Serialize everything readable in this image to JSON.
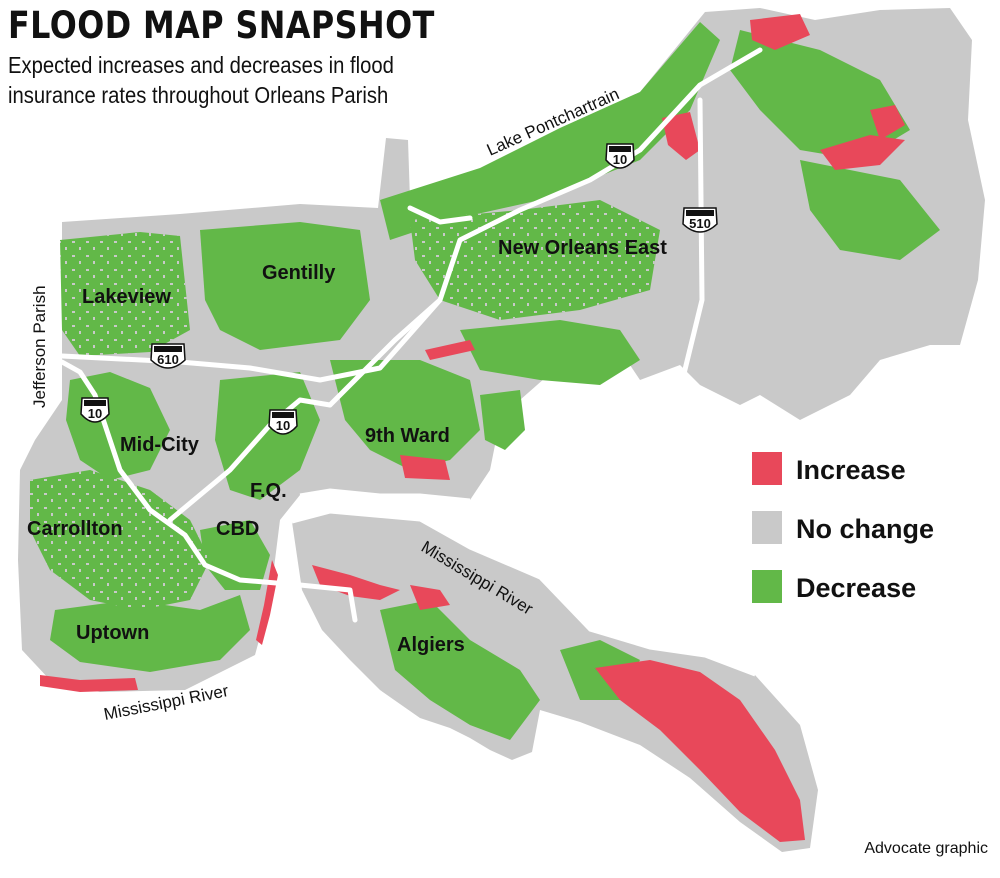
{
  "title": "FLOOD MAP SNAPSHOT",
  "subtitle": "Expected increases and decreases in flood insurance rates throughout Orleans Parish",
  "colors": {
    "increase": "#e8485a",
    "no_change": "#c9c9c9",
    "decrease": "#62b848",
    "road": "#ffffff"
  },
  "legend": {
    "items": [
      {
        "label": "Increase",
        "color_key": "increase"
      },
      {
        "label": "No change",
        "color_key": "no_change"
      },
      {
        "label": "Decrease",
        "color_key": "decrease"
      }
    ]
  },
  "labels": {
    "neighborhoods": {
      "lakeview": "Lakeview",
      "gentilly": "Gentilly",
      "new_orleans_east": "New Orleans East",
      "mid_city": "Mid-City",
      "ninth_ward": "9th Ward",
      "fq": "F.Q.",
      "cbd": "CBD",
      "carrollton": "Carrollton",
      "uptown": "Uptown",
      "algiers": "Algiers"
    },
    "geography": {
      "lake": "Lake Pontchartrain",
      "jefferson": "Jefferson Parish",
      "river_east": "Mississippi River",
      "river_west": "Mississippi River"
    },
    "highways": {
      "i10_east": "10",
      "i510": "510",
      "i610": "610",
      "i10_west": "10",
      "i10_central": "10"
    }
  },
  "credit": "Advocate graphic"
}
